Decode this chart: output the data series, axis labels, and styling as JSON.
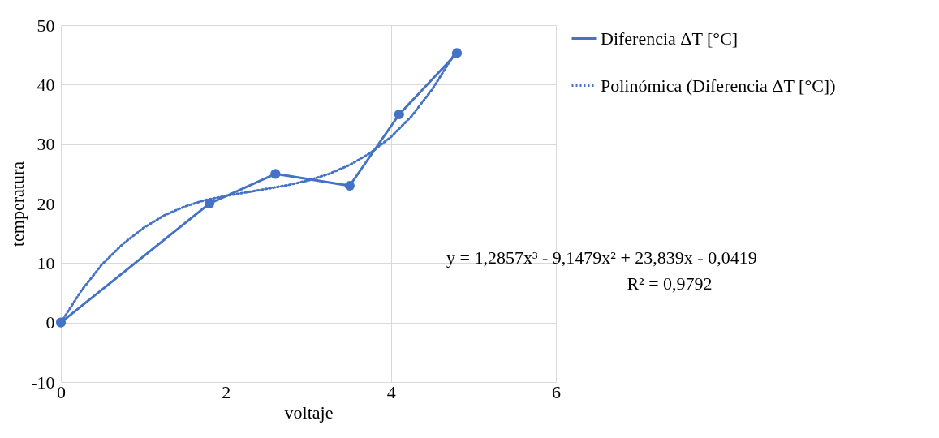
{
  "chart_data": {
    "type": "line",
    "xlabel": "voltaje",
    "ylabel": "temperatura",
    "xlim": [
      0,
      6
    ],
    "xticks": [
      0,
      2,
      4,
      6
    ],
    "ylim": [
      -10,
      50
    ],
    "yticks": [
      -10,
      0,
      10,
      20,
      30,
      40,
      50
    ],
    "grid": true,
    "legend": "right",
    "series": [
      {
        "name": "Diferencia ΔT [°C]",
        "color": "#4472c4",
        "marker": "circle",
        "line_style": "solid",
        "x": [
          0,
          1.8,
          2.6,
          3.5,
          4.1,
          4.8
        ],
        "values": [
          0,
          20,
          25,
          23,
          35,
          45.3
        ]
      },
      {
        "name": "Polinómica (Diferencia ΔT [°C])",
        "color": "#4472c4",
        "marker": "none",
        "line_style": "dotted",
        "x": [
          0,
          0.25,
          0.5,
          0.75,
          1,
          1.25,
          1.5,
          1.75,
          2,
          2.25,
          2.5,
          2.75,
          3,
          3.25,
          3.5,
          3.75,
          4,
          4.25,
          4.5,
          4.8
        ],
        "values": [
          0,
          5.4,
          9.8,
          13.2,
          15.9,
          18,
          19.5,
          20.6,
          21.3,
          21.9,
          22.5,
          23.1,
          23.9,
          25,
          26.5,
          28.5,
          31.2,
          34.7,
          39.2,
          45.8
        ]
      }
    ],
    "annotations": [
      "y = 1,2857x³ - 9,1479x² + 23,839x - 0,0419",
      "R² = 0,9792"
    ]
  }
}
